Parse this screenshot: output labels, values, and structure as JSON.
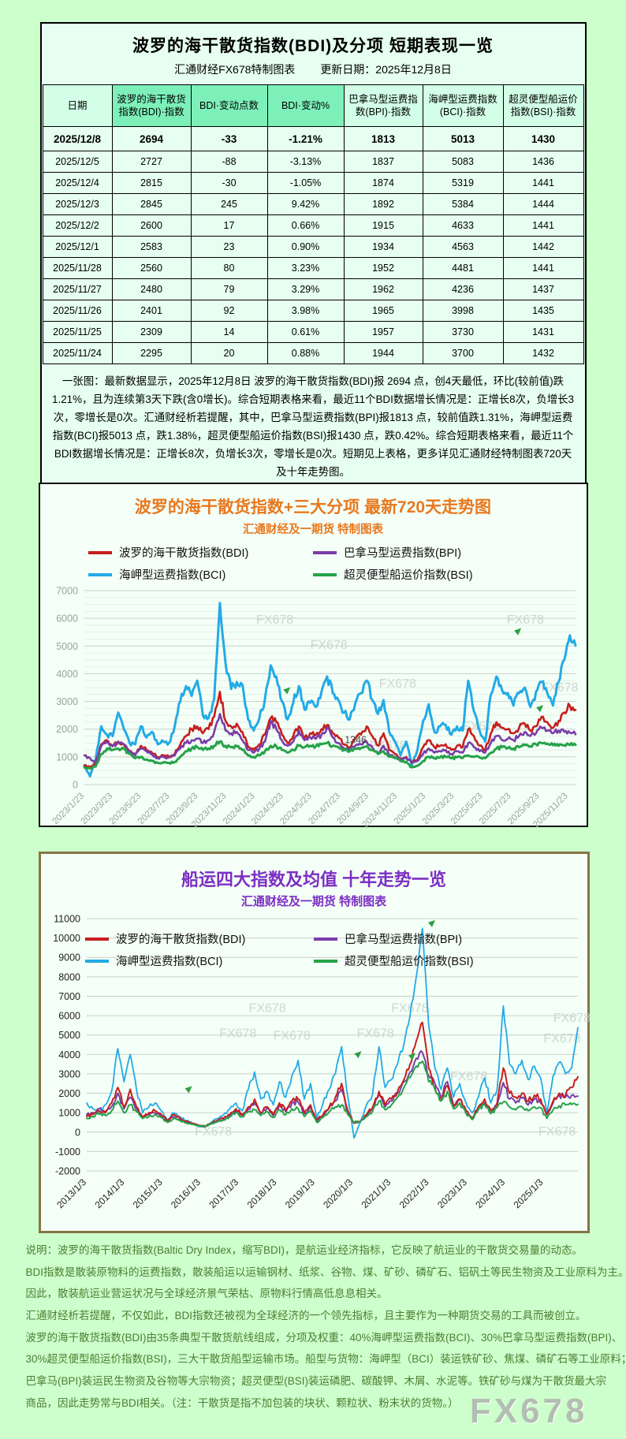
{
  "table_section": {
    "title": "波罗的海干散货指数(BDI)及分项 短期表现一览",
    "source_label": "汇通财经FX678特制图表",
    "update_label": "更新日期：2025年12月8日",
    "columns": [
      "日期",
      "波罗的海干散货指数(BDI)·指数",
      "BDI·变动点数",
      "BDI·变动%",
      "巴拿马型运费指数(BPI)·指数",
      "海岬型运费指数(BCI)·指数",
      "超灵便型船运价指数(BSI)·指数"
    ],
    "rows": [
      [
        "2025/12/8",
        "2694",
        "-33",
        "-1.21%",
        "1813",
        "5013",
        "1430"
      ],
      [
        "2025/12/5",
        "2727",
        "-88",
        "-3.13%",
        "1837",
        "5083",
        "1436"
      ],
      [
        "2025/12/4",
        "2815",
        "-30",
        "-1.05%",
        "1874",
        "5319",
        "1441"
      ],
      [
        "2025/12/3",
        "2845",
        "245",
        "9.42%",
        "1892",
        "5384",
        "1444"
      ],
      [
        "2025/12/2",
        "2600",
        "17",
        "0.66%",
        "1915",
        "4633",
        "1441"
      ],
      [
        "2025/12/1",
        "2583",
        "23",
        "0.90%",
        "1934",
        "4563",
        "1442"
      ],
      [
        "2025/11/28",
        "2560",
        "80",
        "3.23%",
        "1952",
        "4481",
        "1441"
      ],
      [
        "2025/11/27",
        "2480",
        "79",
        "3.29%",
        "1962",
        "4236",
        "1437"
      ],
      [
        "2025/11/26",
        "2401",
        "92",
        "3.98%",
        "1965",
        "3998",
        "1435"
      ],
      [
        "2025/11/25",
        "2309",
        "14",
        "0.61%",
        "1957",
        "3730",
        "1431"
      ],
      [
        "2025/11/24",
        "2295",
        "20",
        "0.88%",
        "1944",
        "3700",
        "1432"
      ]
    ],
    "header_colors": {
      "light": "#d2ffe6",
      "mint": "#7df0ba",
      "red_text": "#c00000"
    },
    "summary": "一张图：最新数据显示，2025年12月8日 波罗的海干散货指数(BDI)报 2694 点，创4天最低，环比(较前值)跌1.21%，且为连续第3天下跌(含0增长)。综合短期表格来看，最近11个BDI数据增长情况是：正增长8次，负增长3次，零增长是0次。汇通财经析若提醒，其中，巴拿马型运费指数(BPI)报1813 点，较前值跌1.31%，海岬型运费指数(BCI)报5013 点，跌1.38%，超灵便型船运价指数(BSI)报1430 点，跌0.42%。综合短期表格来看，最近11个BDI数据增长情况是：正增长8次，负增长3次，零增长是0次。短期见上表格，更多详见汇通财经特制图表720天及十年走势图。"
  },
  "chart_data": [
    {
      "type": "line",
      "title": "波罗的海干散货指数+三大分项  最新720天走势图",
      "subtitle": "汇通财经及一期货 特制图表",
      "title_color": "#e8781e",
      "ylim": [
        0,
        7000
      ],
      "ytick_step": 1000,
      "minor_step": 250,
      "grid": true,
      "legend_position": "top-center",
      "axis_color": "#9aa49e",
      "xaxis_color": "#9aa49e",
      "x_span_frac": 0.985,
      "x_tick_labels": [
        "2023/1/23",
        "2023/3/23",
        "2023/5/23",
        "2023/7/23",
        "2023/9/23",
        "2023/11/23",
        "2024/1/23",
        "2024/3/23",
        "2024/5/23",
        "2024/7/23",
        "2024/9/23",
        "2024/11/23",
        "2025/1/23",
        "2025/3/23",
        "2025/5/23",
        "2025/7/23",
        "2025/9/23",
        "2025/11/23"
      ],
      "draw_order": [
        2,
        0,
        1,
        3
      ],
      "jitter": 0.05,
      "series": [
        {
          "name": "波罗的海干散货指数(BDI)",
          "color": "#c61e1e",
          "width": 2.6,
          "values": [
            680,
            620,
            750,
            1450,
            1600,
            1380,
            1550,
            1450,
            1200,
            1100,
            1400,
            1250,
            1150,
            980,
            1050,
            1000,
            1100,
            1450,
            1750,
            2000,
            2100,
            1850,
            2000,
            2450,
            3350,
            2300,
            2100,
            2200,
            1900,
            1350,
            1250,
            1450,
            1800,
            2400,
            2250,
            1800,
            1500,
            1750,
            2100,
            1700,
            1850,
            1800,
            2000,
            2150,
            1850,
            1700,
            1450,
            1350,
            1650,
            1800,
            2100,
            1750,
            1400,
            1850,
            1250,
            1100,
            950,
            1000,
            780,
            900,
            1350,
            1600,
            1350,
            1400,
            1450,
            1250,
            1400,
            1350,
            2000,
            1750,
            1400,
            1250,
            1850,
            2250,
            2050,
            2000,
            1850,
            2050,
            2200,
            1950,
            2100,
            2450,
            2250,
            2050,
            2300,
            2600,
            2845,
            2694
          ]
        },
        {
          "name": "巴拿马型运费指数(BPI)",
          "color": "#7a3da8",
          "width": 2.6,
          "values": [
            1050,
            950,
            800,
            1400,
            1550,
            1400,
            1500,
            1450,
            1200,
            1050,
            1300,
            1200,
            1100,
            950,
            1000,
            980,
            1050,
            1300,
            1500,
            1600,
            1650,
            1500,
            1600,
            1900,
            2550,
            1950,
            1850,
            1900,
            1600,
            1250,
            1150,
            1300,
            1550,
            2300,
            2000,
            1600,
            1400,
            1550,
            1950,
            1600,
            1700,
            1650,
            1800,
            2050,
            1700,
            1500,
            1300,
            1250,
            1400,
            1450,
            1550,
            1350,
            1150,
            1400,
            1050,
            1000,
            900,
            950,
            800,
            850,
            1100,
            1300,
            1150,
            1200,
            1250,
            1100,
            1200,
            1150,
            1500,
            1350,
            1200,
            1150,
            1500,
            1750,
            1600,
            1650,
            1600,
            1750,
            1900,
            1750,
            1850,
            2050,
            1950,
            1850,
            1950,
            1900,
            1870,
            1813
          ]
        },
        {
          "name": "海岬型运费指数(BCI)",
          "color": "#23aae6",
          "width": 3,
          "values": [
            700,
            300,
            900,
            2100,
            1800,
            1750,
            2600,
            2000,
            1500,
            1450,
            2100,
            1700,
            1900,
            1450,
            1550,
            1500,
            2100,
            3000,
            3550,
            3200,
            3750,
            2500,
            2400,
            3100,
            6550,
            4400,
            3450,
            3700,
            3600,
            2350,
            1950,
            2400,
            3100,
            4300,
            3900,
            3000,
            2350,
            2950,
            3550,
            2700,
            2950,
            2800,
            3350,
            3900,
            3300,
            3050,
            2600,
            2350,
            2950,
            3300,
            3750,
            3050,
            2550,
            3050,
            1900,
            1550,
            1050,
            1550,
            700,
            1250,
            2300,
            2900,
            1900,
            2100,
            2150,
            1800,
            2100,
            1950,
            3750,
            2650,
            1950,
            1550,
            3250,
            3900,
            3400,
            3300,
            2850,
            3300,
            3500,
            2800,
            3350,
            3700,
            3300,
            2850,
            3700,
            4500,
            5384,
            5013
          ]
        },
        {
          "name": "超灵便型船运价指数(BSI)",
          "color": "#27a24a",
          "width": 3,
          "values": [
            620,
            580,
            650,
            1100,
            1300,
            1250,
            1300,
            1280,
            1100,
            950,
            1000,
            900,
            850,
            780,
            800,
            780,
            820,
            1000,
            1200,
            1300,
            1350,
            1250,
            1300,
            1400,
            1550,
            1400,
            1350,
            1380,
            1250,
            1050,
            1000,
            1050,
            1200,
            1400,
            1380,
            1250,
            1150,
            1250,
            1400,
            1350,
            1400,
            1380,
            1450,
            1500,
            1400,
            1350,
            1250,
            1200,
            1300,
            1320,
            1380,
            1250,
            1100,
            1200,
            1000,
            950,
            850,
            820,
            620,
            680,
            850,
            1000,
            950,
            980,
            1000,
            950,
            980,
            960,
            1050,
            1000,
            980,
            950,
            1150,
            1300,
            1350,
            1320,
            1300,
            1346,
            1420,
            1380,
            1450,
            1500,
            1480,
            1420,
            1400,
            1420,
            1425,
            1430
          ]
        }
      ],
      "annotations": [
        {
          "text": "1346",
          "x": 0.53,
          "value": 1500,
          "color": "#444444"
        }
      ],
      "watermarks": [
        {
          "x": 0.35,
          "y": 0.17
        },
        {
          "x": 0.46,
          "y": 0.3
        },
        {
          "x": 0.86,
          "y": 0.17
        },
        {
          "x": 0.6,
          "y": 0.5
        },
        {
          "x": 0.93,
          "y": 0.52
        },
        {
          "x": 0.77,
          "y": 0.72
        },
        {
          "x": 0.58,
          "y": 0.82
        }
      ],
      "markers": [
        {
          "x": 0.405,
          "value": 3430
        },
        {
          "x": 0.875,
          "value": 5560
        },
        {
          "x": 0.92,
          "value": 2780
        }
      ]
    },
    {
      "type": "line",
      "title": "船运四大指数及均值 十年走势一览",
      "subtitle": "汇通财经及一期货 特制图表",
      "title_color": "#7c2fc4",
      "ylim": [
        -2000,
        11000
      ],
      "ytick_step": 1000,
      "minor_step": 0,
      "grid": true,
      "legend_position": "top-inside",
      "axis_color": "#222222",
      "xaxis_color": "#222222",
      "x_span_frac": 0.93,
      "x_tick_labels": [
        "2013/1/3",
        "2014/1/3",
        "2015/1/3",
        "2016/1/3",
        "2017/1/3",
        "2018/1/3",
        "2019/1/3",
        "2020/1/3",
        "2021/1/3",
        "2022/1/3",
        "2023/1/3",
        "2024/1/3",
        "2025/1/3"
      ],
      "draw_order": [
        2,
        1,
        0,
        3
      ],
      "jitter": 0.09,
      "series": [
        {
          "name": "波罗的海干散货指数(BDI)",
          "color": "#c61e1e",
          "width": 2,
          "values": [
            800,
            900,
            1100,
            1000,
            1500,
            2300,
            1300,
            2200,
            1300,
            800,
            1000,
            1100,
            900,
            600,
            900,
            700,
            550,
            450,
            350,
            300,
            450,
            600,
            700,
            900,
            1200,
            900,
            1300,
            1700,
            1000,
            1300,
            900,
            1500,
            1100,
            1600,
            1700,
            1000,
            1400,
            600,
            900,
            1300,
            1800,
            2500,
            1100,
            450,
            550,
            900,
            1300,
            2100,
            1400,
            1700,
            2100,
            2700,
            3500,
            4700,
            5650,
            3300,
            2300,
            1700,
            2400,
            1300,
            1700,
            1100,
            700,
            1300,
            1700,
            1100,
            1500,
            3300,
            2000,
            1800,
            2000,
            1600,
            1900,
            1700,
            900,
            1600,
            2000,
            1900,
            2300,
            2845
          ]
        },
        {
          "name": "巴拿马型运费指数(BPI)",
          "color": "#7a3da8",
          "width": 2,
          "values": [
            900,
            1000,
            1200,
            1050,
            1300,
            2000,
            1200,
            1800,
            1200,
            750,
            900,
            1000,
            850,
            550,
            800,
            650,
            500,
            420,
            330,
            300,
            420,
            550,
            650,
            850,
            1100,
            850,
            1200,
            1500,
            950,
            1250,
            850,
            1400,
            1050,
            1500,
            1550,
            950,
            1300,
            550,
            850,
            1250,
            1600,
            2200,
            1000,
            500,
            550,
            850,
            1250,
            1900,
            1300,
            1600,
            2000,
            2600,
            3100,
            3800,
            4100,
            2900,
            2500,
            1800,
            2600,
            1400,
            1700,
            1000,
            650,
            1250,
            1500,
            1000,
            1400,
            2550,
            1700,
            1500,
            1750,
            1400,
            1700,
            1500,
            900,
            1500,
            1900,
            1800,
            1900,
            1850
          ]
        },
        {
          "name": "海岬型运费指数(BCI)",
          "color": "#23aae6",
          "width": 1.8,
          "values": [
            1500,
            1200,
            900,
            1400,
            2100,
            4300,
            2600,
            4000,
            2200,
            1000,
            1300,
            1500,
            1100,
            600,
            1000,
            800,
            600,
            450,
            300,
            250,
            500,
            700,
            900,
            1200,
            1500,
            1100,
            2200,
            3100,
            1700,
            2100,
            1400,
            2600,
            1800,
            2900,
            3700,
            1700,
            2500,
            700,
            1500,
            2200,
            3000,
            4400,
            1800,
            -300,
            500,
            1400,
            2000,
            4400,
            2300,
            2700,
            3500,
            4500,
            6000,
            8000,
            10500,
            5500,
            3300,
            2200,
            3300,
            1800,
            2500,
            1500,
            1000,
            1800,
            2800,
            1500,
            2200,
            6500,
            3500,
            3000,
            3700,
            2700,
            3400,
            2800,
            1000,
            2900,
            3600,
            3000,
            3300,
            5384
          ]
        },
        {
          "name": "超灵便型船运价指数(BSI)",
          "color": "#27a24a",
          "width": 2,
          "values": [
            700,
            800,
            950,
            850,
            1100,
            1600,
            1000,
            1400,
            1050,
            700,
            800,
            900,
            750,
            500,
            700,
            600,
            480,
            400,
            330,
            300,
            420,
            520,
            620,
            800,
            1000,
            800,
            1050,
            1150,
            850,
            1050,
            750,
            1150,
            900,
            1200,
            1200,
            800,
            1100,
            500,
            750,
            1050,
            1300,
            1400,
            900,
            500,
            550,
            800,
            1100,
            1600,
            1150,
            1400,
            1800,
            2300,
            2800,
            3400,
            3650,
            2600,
            2200,
            1600,
            2100,
            1200,
            1500,
            950,
            650,
            1150,
            1400,
            950,
            1250,
            1550,
            1300,
            1150,
            1300,
            1100,
            1300,
            1250,
            700,
            1150,
            1350,
            1400,
            1420,
            1430
          ]
        }
      ],
      "annotations": [],
      "watermarks": [
        {
          "x": 0.33,
          "y": 0.37
        },
        {
          "x": 0.62,
          "y": 0.37
        },
        {
          "x": 0.27,
          "y": 0.47
        },
        {
          "x": 0.38,
          "y": 0.48
        },
        {
          "x": 0.55,
          "y": 0.47
        },
        {
          "x": 0.74,
          "y": 0.64
        },
        {
          "x": 0.95,
          "y": 0.41
        },
        {
          "x": 0.93,
          "y": 0.49
        },
        {
          "x": 0.22,
          "y": 0.86
        },
        {
          "x": 0.92,
          "y": 0.86
        }
      ],
      "markers": [
        {
          "x": 0.2,
          "value": 2250
        },
        {
          "x": 0.545,
          "value": 4050
        },
        {
          "x": 0.655,
          "value": 3950
        },
        {
          "x": 0.695,
          "value": 10800
        }
      ]
    }
  ],
  "notes_lines": [
    "说明：波罗的海干散货指数(Baltic Dry Index，缩写BDI)，是航运业经济指标，它反映了航运业的干散货交易量的动态。",
    "BDI指数是散装原物料的运费指数，散装船运以运输钢材、纸浆、谷物、煤、矿砂、磷矿石、铝矾土等民生物资及工业原料为主。",
    "因此，散装航运业营运状况与全球经济景气荣枯、原物料行情高低息息相关。",
    "汇通财经析若提醒，不仅如此，BDI指数还被视为全球经济的一个领先指标，且主要作为一种期货交易的工具而被创立。",
    "波罗的海干散货指数(BDI)由35条典型干散货航线组成，分项及权重：40%海岬型运费指数(BCI)、30%巴拿马型运费指数(BPI)、",
    "30%超灵便型船运价指数(BSI)，三大干散货船型运输市场。船型与货物：海岬型（BCI）装运铁矿砂、焦煤、磷矿石等工业原料；",
    "巴拿马(BPI)装运民生物资及谷物等大宗物资；超灵便型(BSI)装运磷肥、碳酸钾、木屑、水泥等。铁矿砂与煤为干散货最大宗",
    "商品，因此走势常与BDI相关。（注：干散货是指不加包装的块状、颗粒状、粉末状的货物。）"
  ],
  "watermark": "FX678"
}
